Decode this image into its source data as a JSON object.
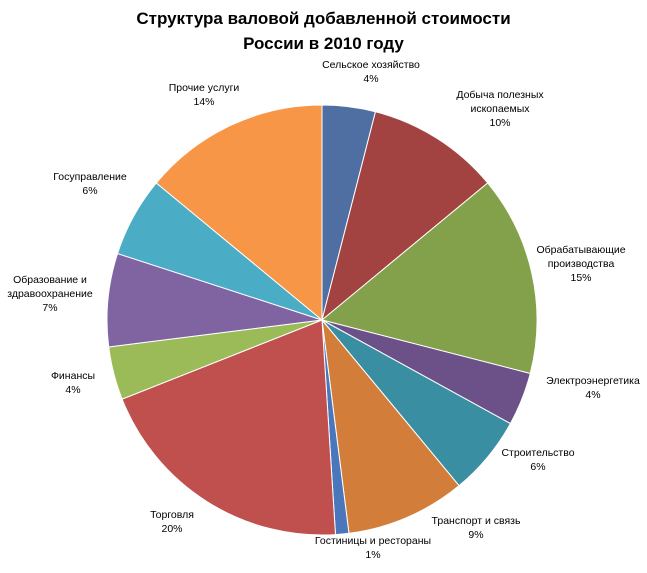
{
  "chart_data": {
    "type": "pie",
    "title_line1": "Структура валовой добавленной стоимости",
    "title_line2": "России в 2010 году",
    "start_angle_deg": 0,
    "direction": "clockwise",
    "slices": [
      {
        "label_lines": [
          "Сельское хозяйство"
        ],
        "value": 4,
        "value_label": "4%",
        "color": "#4F6FA3"
      },
      {
        "label_lines": [
          "Добыча полезных",
          "ископаемых"
        ],
        "value": 10,
        "value_label": "10%",
        "color": "#A34341"
      },
      {
        "label_lines": [
          "Обрабатывающие",
          "производства"
        ],
        "value": 15,
        "value_label": "15%",
        "color": "#83A04A"
      },
      {
        "label_lines": [
          "Электроэнергетика"
        ],
        "value": 4,
        "value_label": "4%",
        "color": "#6C5189"
      },
      {
        "label_lines": [
          "Строительство"
        ],
        "value": 6,
        "value_label": "6%",
        "color": "#3A8EA1"
      },
      {
        "label_lines": [
          "Транспорт и связь"
        ],
        "value": 9,
        "value_label": "9%",
        "color": "#D27E3A"
      },
      {
        "label_lines": [
          "Гостиницы и рестораны"
        ],
        "value": 1,
        "value_label": "1%",
        "color": "#4A76BC"
      },
      {
        "label_lines": [
          "Торговля"
        ],
        "value": 20,
        "value_label": "20%",
        "color": "#C0504D"
      },
      {
        "label_lines": [
          "Финансы"
        ],
        "value": 4,
        "value_label": "4%",
        "color": "#9BBB59"
      },
      {
        "label_lines": [
          "Образование и",
          "здравоохранение"
        ],
        "value": 7,
        "value_label": "7%",
        "color": "#8064A2"
      },
      {
        "label_lines": [
          "Госуправление"
        ],
        "value": 6,
        "value_label": "6%",
        "color": "#4BACC6"
      },
      {
        "label_lines": [
          "Прочие услуги"
        ],
        "value": 14,
        "value_label": "14%",
        "color": "#F79646"
      }
    ]
  }
}
